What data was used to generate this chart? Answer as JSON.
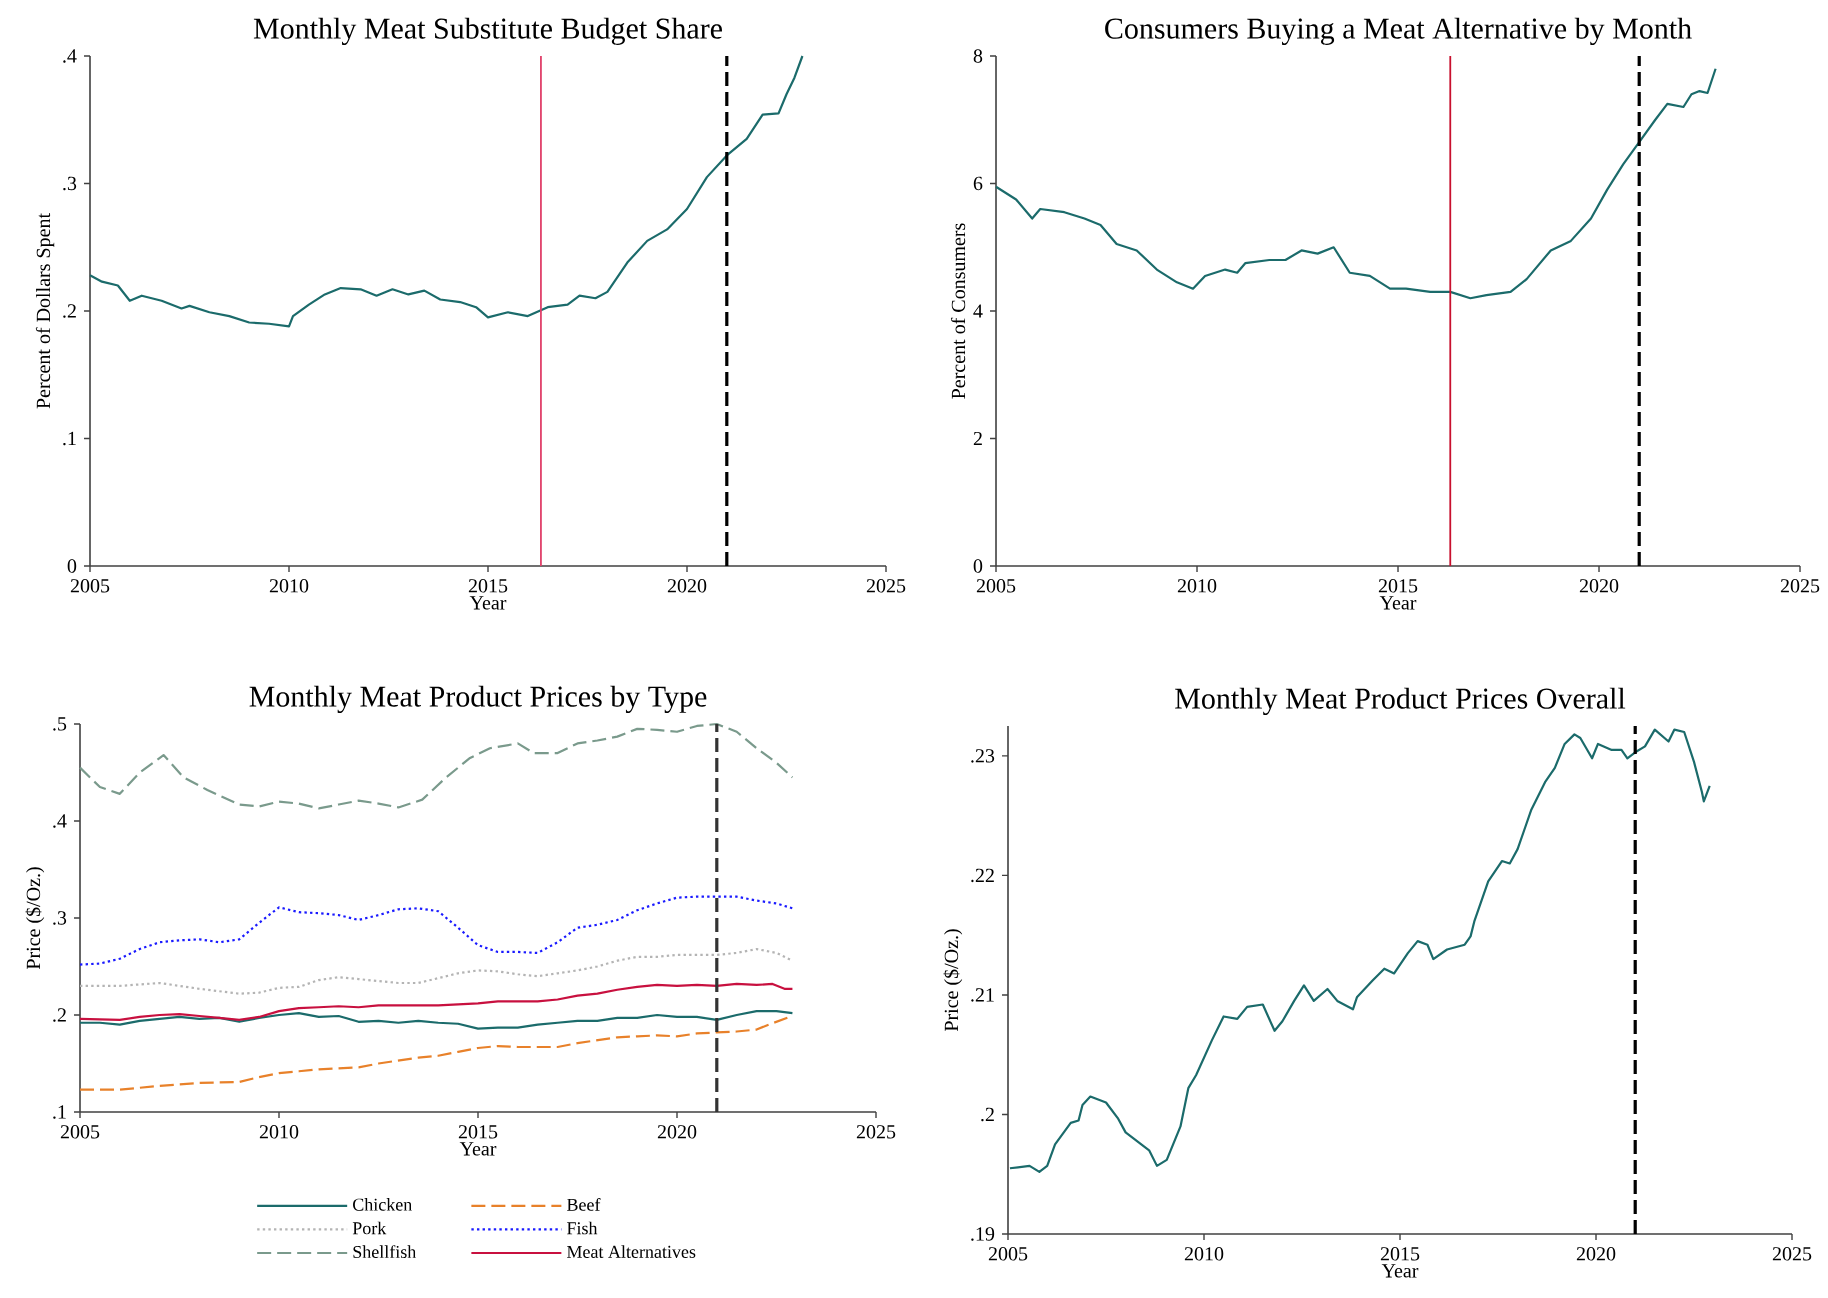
{
  "chart_data": [
    {
      "type": "line",
      "title": "Monthly Meat Substitute Budget Share",
      "xlabel": "Year",
      "ylabel": "Percent of Dollars Spent",
      "color": "#1b6b6b",
      "x": [
        2005.0,
        2005.3,
        2005.7,
        2006.0,
        2006.3,
        2006.8,
        2007.3,
        2007.5,
        2008.0,
        2008.5,
        2009.0,
        2009.5,
        2010.0,
        2010.1,
        2010.5,
        2010.9,
        2011.3,
        2011.8,
        2012.2,
        2012.6,
        2013.0,
        2013.4,
        2013.8,
        2014.3,
        2014.7,
        2015.0,
        2015.5,
        2016.0,
        2016.5,
        2017.0,
        2017.3,
        2017.7,
        2018.0,
        2018.5,
        2019.0,
        2019.5,
        2020.0,
        2020.5,
        2021.0,
        2021.5,
        2021.9,
        2022.3,
        2022.5,
        2022.7,
        2022.9
      ],
      "values": [
        0.228,
        0.223,
        0.22,
        0.208,
        0.212,
        0.208,
        0.202,
        0.204,
        0.199,
        0.196,
        0.191,
        0.19,
        0.188,
        0.196,
        0.205,
        0.213,
        0.218,
        0.217,
        0.212,
        0.217,
        0.213,
        0.216,
        0.209,
        0.207,
        0.203,
        0.195,
        0.199,
        0.196,
        0.203,
        0.205,
        0.212,
        0.21,
        0.215,
        0.238,
        0.255,
        0.264,
        0.28,
        0.305,
        0.322,
        0.335,
        0.354,
        0.355,
        0.37,
        0.383,
        0.4
      ],
      "xlim": [
        2005,
        2025
      ],
      "xticks": [
        2005,
        2010,
        2015,
        2020,
        2025
      ],
      "ylim": [
        0,
        0.4
      ],
      "yticks": [
        0,
        {
          "value": 0.1,
          "label": ".1"
        },
        {
          "value": 0.2,
          "label": ".2"
        },
        {
          "value": 0.3,
          "label": ".3"
        },
        {
          "value": 0.4,
          "label": ".4"
        }
      ],
      "ref_lines": [
        {
          "axis": "x",
          "value": 2016.33,
          "color": "#e0406a",
          "line_style": "solid"
        },
        {
          "axis": "x",
          "value": 2021,
          "color": "#000000",
          "line_style": "dashed"
        }
      ]
    },
    {
      "type": "line",
      "title": "Consumers Buying a Meat Alternative by Month",
      "xlabel": "Year",
      "ylabel": "Percent of Consumers",
      "color": "#1b6b6b",
      "x": [
        2005.0,
        2005.5,
        2005.9,
        2006.1,
        2006.7,
        2007.2,
        2007.6,
        2008.0,
        2008.5,
        2009.0,
        2009.5,
        2009.9,
        2010.2,
        2010.7,
        2011.0,
        2011.2,
        2011.8,
        2012.2,
        2012.6,
        2013.0,
        2013.4,
        2013.8,
        2014.3,
        2014.8,
        2015.2,
        2015.8,
        2016.3,
        2016.8,
        2017.2,
        2017.8,
        2018.2,
        2018.8,
        2019.3,
        2019.8,
        2020.2,
        2020.6,
        2021.0,
        2021.4,
        2021.7,
        2022.1,
        2022.3,
        2022.5,
        2022.7,
        2022.9
      ],
      "values": [
        5.95,
        5.75,
        5.45,
        5.6,
        5.55,
        5.45,
        5.35,
        5.05,
        4.95,
        4.65,
        4.45,
        4.35,
        4.55,
        4.65,
        4.6,
        4.75,
        4.8,
        4.8,
        4.95,
        4.9,
        5.0,
        4.6,
        4.55,
        4.35,
        4.35,
        4.3,
        4.3,
        4.2,
        4.25,
        4.3,
        4.5,
        4.95,
        5.1,
        5.45,
        5.9,
        6.3,
        6.65,
        7.0,
        7.25,
        7.2,
        7.4,
        7.45,
        7.42,
        7.8
      ],
      "xlim": [
        2005,
        2025
      ],
      "xticks": [
        2005,
        2010,
        2015,
        2020,
        2025
      ],
      "ylim": [
        0,
        8
      ],
      "yticks": [
        0,
        2,
        4,
        6,
        8
      ],
      "ref_lines": [
        {
          "axis": "x",
          "value": 2016.3,
          "color": "#c8102e",
          "line_style": "solid"
        },
        {
          "axis": "x",
          "value": 2021,
          "color": "#000000",
          "line_style": "dashed"
        }
      ]
    },
    {
      "type": "line",
      "title": "Monthly Meat Product Prices by Type",
      "xlabel": "Year",
      "ylabel": "Price ($/Oz.)",
      "legend": "bottom",
      "xlim": [
        2005,
        2025
      ],
      "xticks": [
        2005,
        2010,
        2015,
        2020,
        2025
      ],
      "ylim": [
        0.1,
        0.5
      ],
      "yticks": [
        {
          "value": 0.1,
          "label": ".1"
        },
        {
          "value": 0.2,
          "label": ".2"
        },
        {
          "value": 0.3,
          "label": ".3"
        },
        {
          "value": 0.4,
          "label": ".4"
        },
        {
          "value": 0.5,
          "label": ".5"
        }
      ],
      "series": [
        {
          "name": "Chicken",
          "color": "#1b6b6b",
          "line_style": "solid",
          "x": [
            2005,
            2005.5,
            2006,
            2006.5,
            2007,
            2007.5,
            2008,
            2008.5,
            2009,
            2009.5,
            2010,
            2010.5,
            2011,
            2011.5,
            2012,
            2012.5,
            2013,
            2013.5,
            2014,
            2014.5,
            2015,
            2015.5,
            2016,
            2016.5,
            2017,
            2017.5,
            2018,
            2018.5,
            2019,
            2019.5,
            2020,
            2020.5,
            2021,
            2021.5,
            2022,
            2022.5,
            2022.9
          ],
          "values": [
            0.192,
            0.192,
            0.19,
            0.194,
            0.196,
            0.198,
            0.196,
            0.197,
            0.193,
            0.197,
            0.2,
            0.202,
            0.198,
            0.199,
            0.193,
            0.194,
            0.192,
            0.194,
            0.192,
            0.191,
            0.186,
            0.187,
            0.187,
            0.19,
            0.192,
            0.194,
            0.194,
            0.197,
            0.197,
            0.2,
            0.198,
            0.198,
            0.195,
            0.2,
            0.204,
            0.204,
            0.202
          ]
        },
        {
          "name": "Beef",
          "color": "#e8812a",
          "line_style": "dashed",
          "x": [
            2005,
            2006,
            2007,
            2008,
            2009,
            2009.5,
            2010,
            2010.5,
            2011,
            2012,
            2012.5,
            2013,
            2013.5,
            2014,
            2014.5,
            2015,
            2015.5,
            2016,
            2017,
            2017.5,
            2018,
            2018.5,
            2019,
            2019.5,
            2020,
            2020.5,
            2021,
            2021.5,
            2022,
            2022.3,
            2022.9
          ],
          "values": [
            0.123,
            0.123,
            0.127,
            0.13,
            0.131,
            0.136,
            0.14,
            0.142,
            0.144,
            0.146,
            0.15,
            0.153,
            0.156,
            0.158,
            0.162,
            0.166,
            0.168,
            0.167,
            0.167,
            0.171,
            0.174,
            0.177,
            0.178,
            0.179,
            0.178,
            0.181,
            0.182,
            0.183,
            0.185,
            0.19,
            0.199
          ]
        },
        {
          "name": "Pork",
          "color": "#b4b4b4",
          "line_style": "dotted",
          "x": [
            2005,
            2006,
            2007,
            2008,
            2009,
            2009.5,
            2010,
            2010.5,
            2011,
            2011.5,
            2012,
            2012.5,
            2013,
            2013.5,
            2014,
            2014.5,
            2015,
            2015.5,
            2016,
            2016.5,
            2017,
            2017.5,
            2018,
            2018.5,
            2019,
            2019.5,
            2020,
            2020.5,
            2021,
            2021.5,
            2022,
            2022.5,
            2022.9
          ],
          "values": [
            0.23,
            0.23,
            0.233,
            0.227,
            0.222,
            0.223,
            0.228,
            0.229,
            0.236,
            0.239,
            0.237,
            0.235,
            0.233,
            0.233,
            0.238,
            0.243,
            0.246,
            0.245,
            0.242,
            0.24,
            0.243,
            0.246,
            0.25,
            0.256,
            0.26,
            0.26,
            0.262,
            0.262,
            0.262,
            0.264,
            0.268,
            0.264,
            0.256
          ]
        },
        {
          "name": "Fish",
          "color": "#1a1aff",
          "line_style": "dotted",
          "x": [
            2005,
            2005.5,
            2006,
            2006.5,
            2007,
            2007.5,
            2008,
            2008.5,
            2009,
            2009.5,
            2010,
            2010.5,
            2011,
            2011.5,
            2012,
            2012.5,
            2013,
            2013.5,
            2014,
            2014.5,
            2015,
            2015.5,
            2016,
            2016.5,
            2017,
            2017.5,
            2018,
            2018.5,
            2019,
            2019.5,
            2020,
            2020.5,
            2021,
            2021.5,
            2022,
            2022.5,
            2022.9
          ],
          "values": [
            0.252,
            0.253,
            0.258,
            0.268,
            0.275,
            0.277,
            0.278,
            0.275,
            0.278,
            0.295,
            0.311,
            0.306,
            0.305,
            0.303,
            0.298,
            0.303,
            0.309,
            0.31,
            0.307,
            0.29,
            0.272,
            0.265,
            0.265,
            0.264,
            0.275,
            0.29,
            0.293,
            0.298,
            0.308,
            0.315,
            0.321,
            0.322,
            0.322,
            0.322,
            0.318,
            0.315,
            0.31
          ]
        },
        {
          "name": "Shellfish",
          "color": "#7a9a8c",
          "line_style": "dashed",
          "x": [
            2005,
            2005.5,
            2006,
            2006.5,
            2007.1,
            2007.6,
            2008.2,
            2009,
            2009.5,
            2010,
            2010.5,
            2011,
            2011.5,
            2012,
            2012.5,
            2013,
            2013.6,
            2014.2,
            2014.8,
            2015.3,
            2016,
            2016.4,
            2017,
            2017.5,
            2018,
            2018.5,
            2019,
            2019.5,
            2020,
            2020.5,
            2021,
            2021.5,
            2022,
            2022.5,
            2022.9
          ],
          "values": [
            0.455,
            0.435,
            0.428,
            0.45,
            0.468,
            0.445,
            0.432,
            0.417,
            0.415,
            0.42,
            0.418,
            0.413,
            0.417,
            0.421,
            0.418,
            0.414,
            0.422,
            0.445,
            0.465,
            0.475,
            0.48,
            0.47,
            0.47,
            0.48,
            0.483,
            0.487,
            0.495,
            0.494,
            0.492,
            0.498,
            0.5,
            0.492,
            0.475,
            0.46,
            0.445
          ]
        },
        {
          "name": "Meat Alternatives",
          "color": "#c8103f",
          "line_style": "solid",
          "x": [
            2005,
            2006,
            2006.5,
            2007,
            2007.5,
            2008,
            2008.5,
            2009,
            2009.5,
            2010,
            2010.5,
            2011,
            2011.5,
            2012,
            2012.5,
            2013,
            2013.5,
            2014,
            2014.5,
            2015,
            2015.5,
            2016,
            2016.5,
            2017,
            2017.5,
            2018,
            2018.5,
            2019,
            2019.5,
            2020,
            2020.5,
            2021,
            2021.5,
            2022,
            2022.4,
            2022.7,
            2022.9
          ],
          "values": [
            0.196,
            0.195,
            0.198,
            0.2,
            0.201,
            0.199,
            0.197,
            0.195,
            0.198,
            0.204,
            0.207,
            0.208,
            0.209,
            0.208,
            0.21,
            0.21,
            0.21,
            0.21,
            0.211,
            0.212,
            0.214,
            0.214,
            0.214,
            0.216,
            0.22,
            0.222,
            0.226,
            0.229,
            0.231,
            0.23,
            0.231,
            0.23,
            0.232,
            0.231,
            0.232,
            0.227,
            0.227
          ]
        }
      ],
      "ref_lines": [
        {
          "axis": "x",
          "value": 2021,
          "color": "#333333",
          "line_style": "dashed"
        }
      ]
    },
    {
      "type": "line",
      "title": "Monthly Meat Product Prices Overall",
      "xlabel": "Year",
      "ylabel": "Price ($/Oz.)",
      "color": "#1b6b6b",
      "x": [
        2005.05,
        2005.55,
        2005.8,
        2006.0,
        2006.2,
        2006.6,
        2006.8,
        2006.9,
        2007.1,
        2007.5,
        2007.8,
        2008.0,
        2008.4,
        2008.6,
        2008.8,
        2009.05,
        2009.4,
        2009.6,
        2009.8,
        2010.2,
        2010.5,
        2010.85,
        2011.1,
        2011.5,
        2011.8,
        2012.0,
        2012.3,
        2012.55,
        2012.8,
        2013.15,
        2013.4,
        2013.8,
        2013.9,
        2014.3,
        2014.6,
        2014.85,
        2015.2,
        2015.45,
        2015.7,
        2015.85,
        2016.2,
        2016.65,
        2016.8,
        2016.9,
        2017.25,
        2017.6,
        2017.8,
        2018.0,
        2018.35,
        2018.7,
        2018.95,
        2019.2,
        2019.45,
        2019.6,
        2019.9,
        2020.05,
        2020.4,
        2020.65,
        2020.8,
        2021.0,
        2021.25,
        2021.5,
        2021.85,
        2022.0,
        2022.25,
        2022.5,
        2022.7,
        2022.75,
        2022.9
      ],
      "values": [
        0.1955,
        0.1957,
        0.1952,
        0.1957,
        0.1975,
        0.1993,
        0.1995,
        0.2008,
        0.2015,
        0.201,
        0.1997,
        0.1985,
        0.1975,
        0.197,
        0.1957,
        0.1962,
        0.199,
        0.2022,
        0.2033,
        0.2062,
        0.2082,
        0.208,
        0.209,
        0.2092,
        0.207,
        0.2078,
        0.2095,
        0.2108,
        0.2095,
        0.2105,
        0.2095,
        0.2088,
        0.2098,
        0.2112,
        0.2122,
        0.2118,
        0.2135,
        0.2145,
        0.2142,
        0.213,
        0.2138,
        0.2142,
        0.2149,
        0.2162,
        0.2195,
        0.2212,
        0.221,
        0.2222,
        0.2255,
        0.2278,
        0.229,
        0.231,
        0.2318,
        0.2315,
        0.2298,
        0.231,
        0.2305,
        0.2305,
        0.2298,
        0.2303,
        0.2308,
        0.2322,
        0.2312,
        0.2322,
        0.232,
        0.2295,
        0.227,
        0.2262,
        0.2275
      ],
      "xlim": [
        2005,
        2025
      ],
      "xticks": [
        2005,
        2010,
        2015,
        2020,
        2025
      ],
      "ylim": [
        0.19,
        0.2325
      ],
      "yticks": [
        {
          "value": 0.19,
          "label": ".19"
        },
        {
          "value": 0.2,
          "label": ".2"
        },
        {
          "value": 0.21,
          "label": ".21"
        },
        {
          "value": 0.22,
          "label": ".22"
        },
        {
          "value": 0.23,
          "label": ".23"
        }
      ],
      "ref_lines": [
        {
          "axis": "x",
          "value": 2021,
          "color": "#000000",
          "line_style": "dashed"
        }
      ]
    }
  ]
}
